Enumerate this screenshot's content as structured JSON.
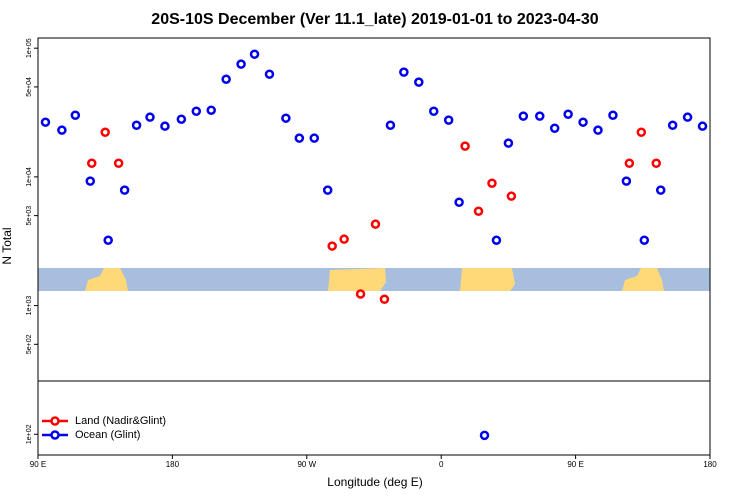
{
  "chart_data": {
    "type": "scatter",
    "title": "20S-10S December (Ver 11.1_late)   2019-01-01 to 2023-04-30",
    "x_label": "Longitude (deg E)",
    "y_label": "N Total",
    "log_y": true,
    "legend": "bottom-left",
    "xlim": [
      90,
      540
    ],
    "xticks": [
      {
        "value": 90,
        "label": "90 E"
      },
      {
        "value": 180,
        "label": "180"
      },
      {
        "value": 270,
        "label": "90 W"
      },
      {
        "value": 360,
        "label": "0"
      },
      {
        "value": 450,
        "label": "90 E"
      },
      {
        "value": 540,
        "label": "180"
      }
    ],
    "ylim": [
      69,
      120000
    ],
    "yticks": [
      {
        "value": 100,
        "label": "1e+02"
      },
      {
        "value": 500,
        "label": "5e+02"
      },
      {
        "value": 1000,
        "label": "1e+03"
      },
      {
        "value": 5000,
        "label": "5e+03"
      },
      {
        "value": 10000,
        "label": "1e+04"
      },
      {
        "value": 50000,
        "label": "5e+04"
      },
      {
        "value": 100000,
        "label": "1e+05"
      }
    ],
    "series": [
      {
        "name": "Land (Nadir&Glint)",
        "color": "#ff0000",
        "x": [
          126,
          135,
          144,
          287,
          295,
          306,
          316,
          322,
          376,
          385,
          394,
          407,
          486,
          494,
          504
        ],
        "values": [
          12760,
          22230,
          12760,
          2900,
          3280,
          1230,
          4290,
          1120,
          17330,
          5410,
          8930,
          7080,
          12760,
          22230,
          12760
        ]
      },
      {
        "name": "Ocean (Glint)",
        "color": "#0000ee",
        "x": [
          95,
          106,
          115,
          125,
          137,
          148,
          156,
          165,
          175,
          186,
          196,
          206,
          216,
          226,
          235,
          245,
          256,
          265,
          275,
          284,
          326,
          335,
          345,
          355,
          365,
          372,
          389,
          397,
          405,
          415,
          426,
          436,
          445,
          455,
          465,
          475,
          484,
          496,
          507,
          515,
          525,
          535
        ],
        "values": [
          26600,
          23070,
          30130,
          9270,
          3220,
          7890,
          25200,
          29100,
          24770,
          28060,
          32360,
          32960,
          57400,
          75150,
          89800,
          62800,
          28580,
          20000,
          20000,
          7890,
          25200,
          65160,
          54450,
          32360,
          27600,
          6350,
          98,
          3220,
          18280,
          29650,
          29650,
          23880,
          30690,
          26600,
          23070,
          30130,
          9270,
          3220,
          7890,
          25200,
          29100,
          24770
        ]
      }
    ]
  }
}
